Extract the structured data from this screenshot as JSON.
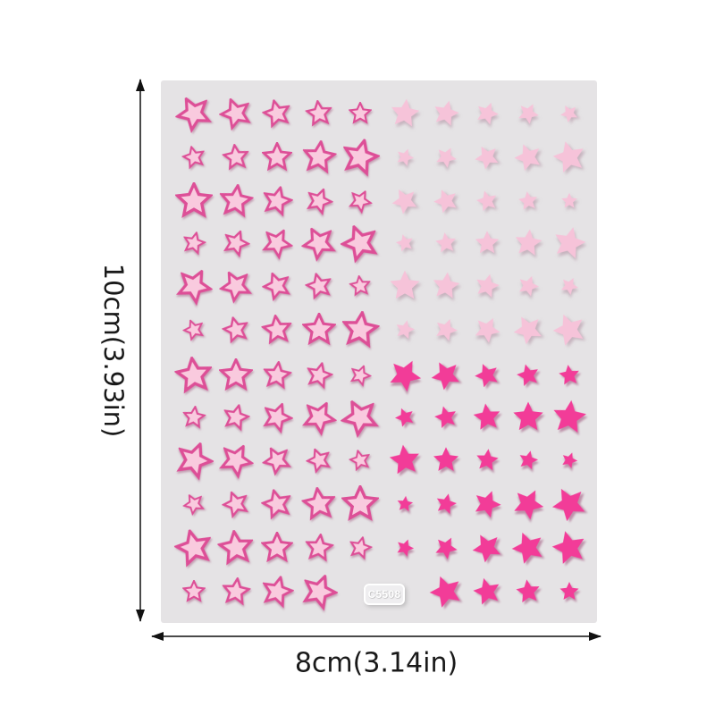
{
  "product": {
    "code_label": "C5508"
  },
  "dimensions": {
    "height_label": "10cm(3.93in)",
    "width_label": "8cm(3.14in)"
  },
  "colors": {
    "background": "#ffffff",
    "sheet_background": "#e5e3e5",
    "outline_star_stroke": "#dd4f97",
    "outline_star_fill": "#f9cade",
    "light_pink_star": "#f6c3d9",
    "hot_pink_star": "#f23c98",
    "dimension_line": "#4a4a4a",
    "dimension_text": "#191919"
  },
  "stars": {
    "styles": {
      "outline": "pink outlined star with light pink fill",
      "light": "solid light pink star",
      "hot": "solid hot pink star"
    },
    "rows": [
      {
        "left_style": "outline",
        "right_style": "light",
        "sizes": [
          40,
          36,
          32,
          30,
          26,
          36,
          32,
          28,
          26,
          22
        ]
      },
      {
        "left_style": "outline",
        "right_style": "light",
        "sizes": [
          26,
          30,
          34,
          38,
          42,
          22,
          26,
          30,
          34,
          40
        ]
      },
      {
        "left_style": "outline",
        "right_style": "light",
        "sizes": [
          42,
          38,
          34,
          30,
          26,
          32,
          30,
          26,
          24,
          20
        ]
      },
      {
        "left_style": "outline",
        "right_style": "light",
        "sizes": [
          26,
          30,
          34,
          38,
          42,
          22,
          26,
          30,
          34,
          40
        ]
      },
      {
        "left_style": "outline",
        "right_style": "light",
        "sizes": [
          40,
          36,
          32,
          30,
          24,
          38,
          34,
          30,
          26,
          22
        ]
      },
      {
        "left_style": "outline",
        "right_style": "light",
        "sizes": [
          24,
          30,
          34,
          38,
          42,
          24,
          28,
          32,
          36,
          40
        ]
      },
      {
        "left_style": "outline",
        "right_style": "hot",
        "sizes": [
          42,
          38,
          32,
          30,
          24,
          40,
          36,
          30,
          28,
          26
        ]
      },
      {
        "left_style": "outline",
        "right_style": "hot",
        "sizes": [
          26,
          30,
          34,
          38,
          42,
          24,
          28,
          34,
          38,
          42
        ]
      },
      {
        "left_style": "outline",
        "right_style": "hot",
        "sizes": [
          42,
          38,
          32,
          28,
          24,
          38,
          32,
          28,
          24,
          20
        ]
      },
      {
        "left_style": "outline",
        "right_style": "hot",
        "sizes": [
          24,
          30,
          34,
          38,
          42,
          20,
          26,
          34,
          38,
          42
        ]
      },
      {
        "left_style": "outline",
        "right_style": "hot",
        "sizes": [
          42,
          40,
          36,
          32,
          26,
          22,
          28,
          36,
          40,
          42
        ]
      },
      {
        "left_style": "outline",
        "right_style": "hot",
        "sizes": [
          26,
          32,
          36,
          40,
          null,
          null,
          40,
          34,
          30,
          24
        ]
      }
    ]
  }
}
